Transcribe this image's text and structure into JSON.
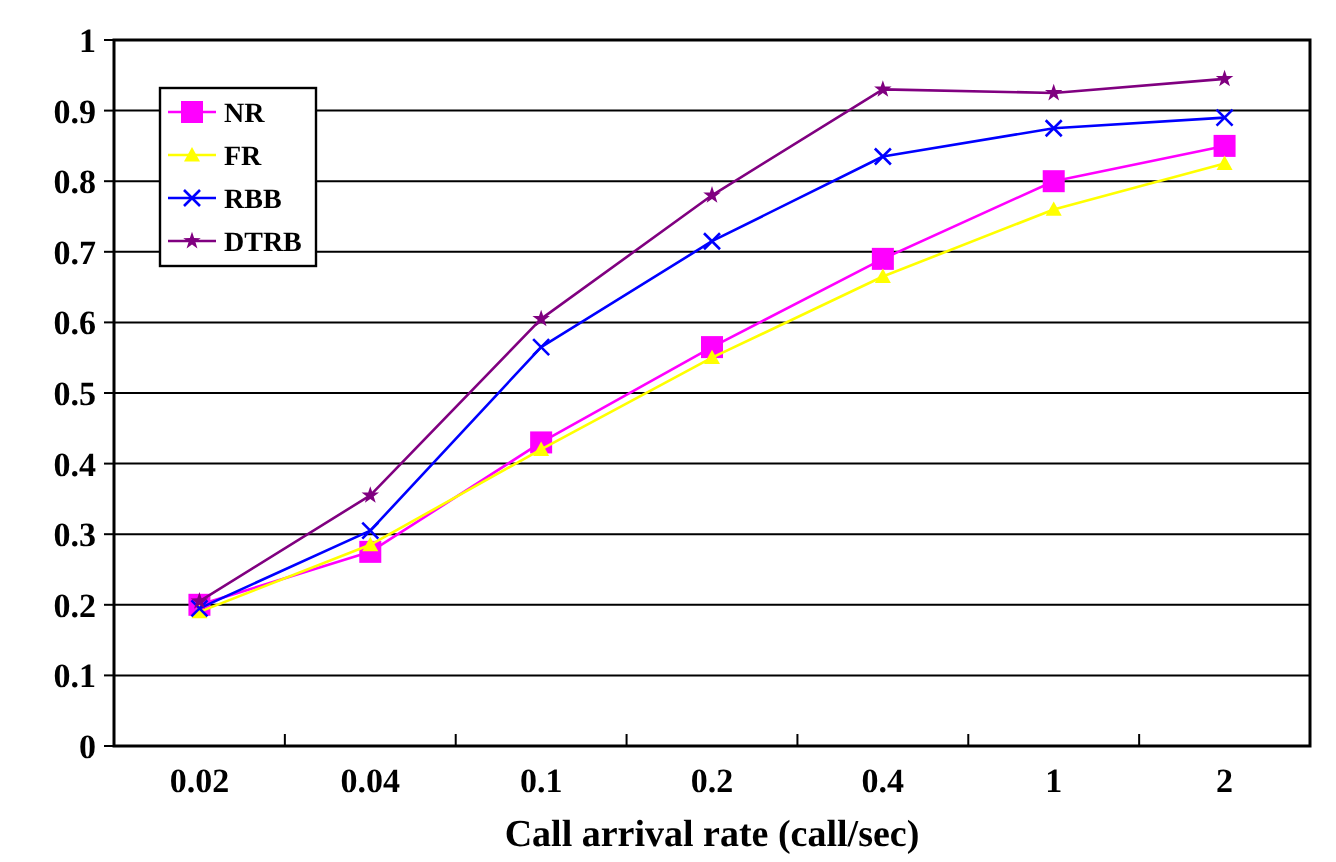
{
  "chart_data": {
    "type": "line",
    "xlabel": "Call arrival rate (call/sec)",
    "categories": [
      "0.02",
      "0.04",
      "0.1",
      "0.2",
      "0.4",
      "1",
      "2"
    ],
    "ylim": [
      0,
      1
    ],
    "yticks": [
      0,
      0.1,
      0.2,
      0.3,
      0.4,
      0.5,
      0.6,
      0.7,
      0.8,
      0.9,
      1
    ],
    "grid": "y",
    "legend": "top left",
    "line_style": "solid",
    "series": [
      {
        "name": "NR",
        "color": "#ff00ff",
        "marker": "square",
        "values": [
          0.2,
          0.275,
          0.43,
          0.565,
          0.69,
          0.8,
          0.85
        ]
      },
      {
        "name": "FR",
        "color": "#ffff00",
        "marker": "triangle",
        "values": [
          0.19,
          0.285,
          0.42,
          0.55,
          0.665,
          0.76,
          0.825
        ]
      },
      {
        "name": "RBB",
        "color": "#0000ff",
        "marker": "cross",
        "values": [
          0.195,
          0.305,
          0.565,
          0.715,
          0.835,
          0.875,
          0.89
        ]
      },
      {
        "name": "DTRB",
        "color": "#800080",
        "marker": "star",
        "values": [
          0.205,
          0.355,
          0.605,
          0.78,
          0.93,
          0.925,
          0.945
        ]
      }
    ]
  }
}
